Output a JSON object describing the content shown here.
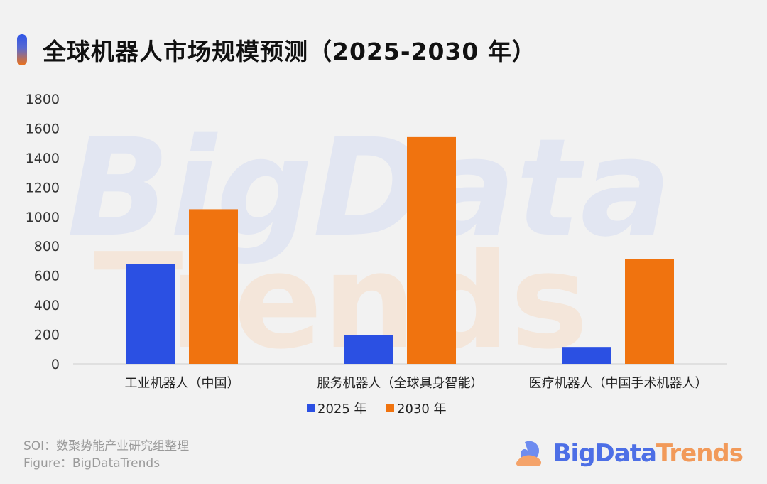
{
  "header": {
    "title": "全球机器人市场规模预测（2025-2030 年）"
  },
  "watermark": {
    "line1": "BigData",
    "line2": "Trends"
  },
  "chart_data": {
    "type": "bar",
    "categories": [
      "工业机器人（中国）",
      "服务机器人（全球具身智能）",
      "医疗机器人（中国手术机器人）"
    ],
    "series": [
      {
        "name": "2025 年",
        "color": "#2b50e3",
        "values": [
          680,
          195,
          115
        ]
      },
      {
        "name": "2030 年",
        "color": "#f0730f",
        "values": [
          1050,
          1540,
          710
        ]
      }
    ],
    "ylim": [
      0,
      1800
    ],
    "yticks": [
      "0",
      "200",
      "400",
      "600",
      "800",
      "1000",
      "1200",
      "1400",
      "1600",
      "1800"
    ],
    "grid": false,
    "legend": "bottom-center"
  },
  "footer": {
    "source": "SOI：数聚势能产业研究组整理",
    "figure": "Figure：BigDataTrends"
  },
  "brand": {
    "part1": "BigData",
    "part2": "Trends"
  }
}
